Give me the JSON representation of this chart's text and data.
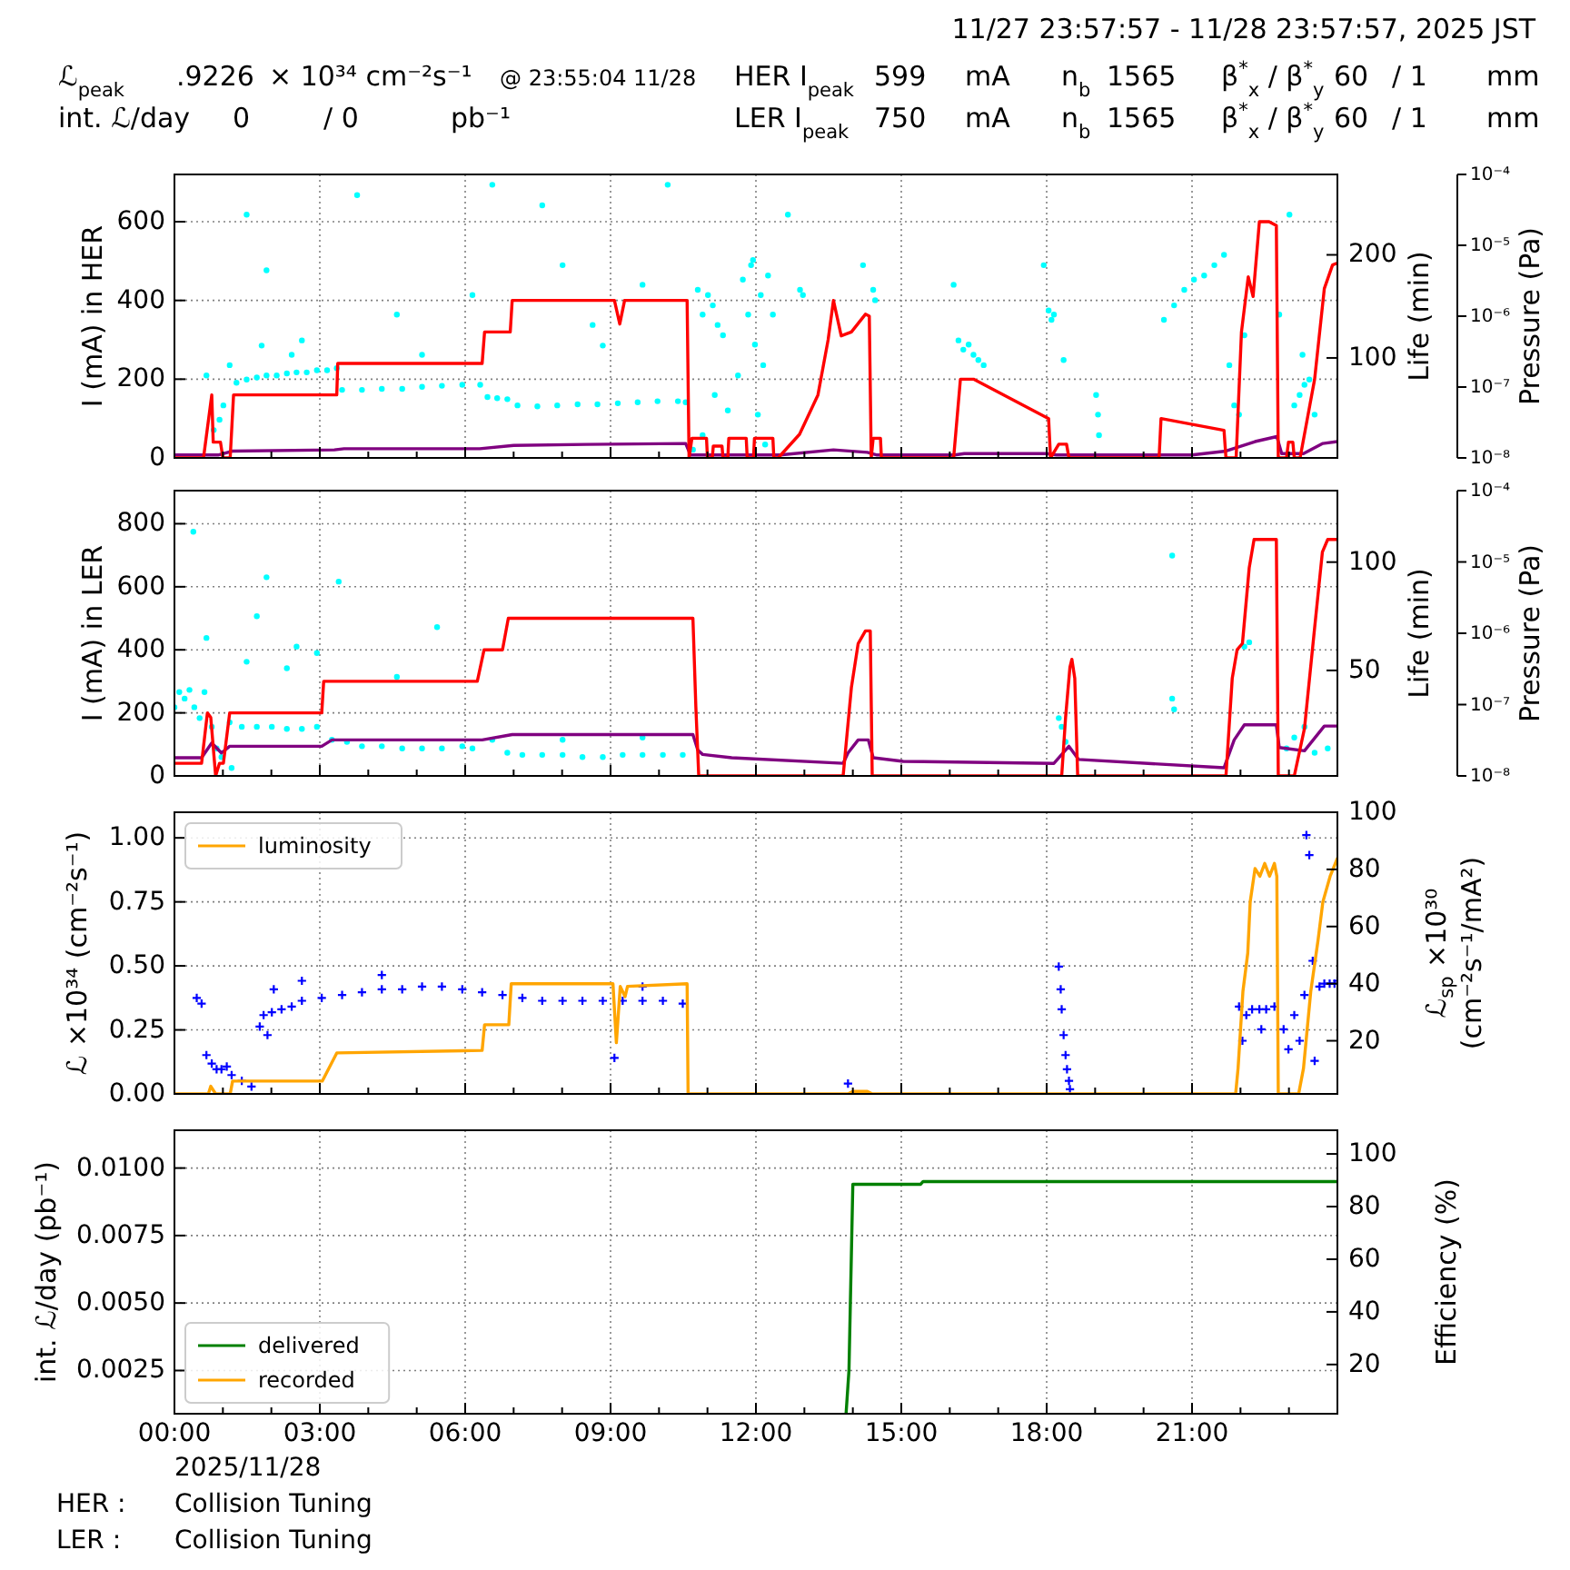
{
  "chart_data": [
    {
      "type": "other",
      "title": "11/27 23:57:57 - 11/28 23:57:57, 2025 JST",
      "annotations": [
        "ℒ$_{peak}$",
        ".9226",
        "× 10³⁴ cm⁻²s⁻¹",
        "@ 23:55:04 11/28",
        "HER I$_{peak}$",
        "599",
        "mA",
        "n$_{b}$",
        "1565",
        "β$^{*}$$_{x}$ / β$^{*}$$_{y}$",
        "60",
        "/ 1",
        "mm",
        "int. ℒ/day",
        "0",
        "/ 0",
        "pb⁻¹",
        "LER I$_{peak}$",
        "750",
        "mA",
        "n$_{b}$",
        "1565",
        "β$^{*}$$_{x}$ / β$^{*}$$_{y}$",
        "60",
        "/ 1",
        "mm"
      ]
    },
    {
      "type": "line",
      "ylabel": "I (mA) in HER",
      "y2label": "Life (min)",
      "y3label": "Pressure (Pa)",
      "xlim": [
        0,
        24
      ],
      "xticks": [
        0,
        {
          "value": 1,
          "label": null
        },
        {
          "value": 2,
          "label": null
        },
        3,
        {
          "value": 4,
          "label": null
        },
        {
          "value": 5,
          "label": null
        },
        6,
        {
          "value": 7,
          "label": null
        },
        {
          "value": 8,
          "label": null
        },
        9,
        {
          "value": 10,
          "label": null
        },
        {
          "value": 11,
          "label": null
        },
        12,
        {
          "value": 13,
          "label": null
        },
        {
          "value": 14,
          "label": null
        },
        15,
        {
          "value": 16,
          "label": null
        },
        {
          "value": 17,
          "label": null
        },
        18,
        {
          "value": 19,
          "label": null
        },
        {
          "value": 20,
          "label": null
        },
        21,
        {
          "value": 22,
          "label": null
        },
        {
          "value": 23,
          "label": null
        }
      ],
      "ylim": [
        0,
        720
      ],
      "yticks": [
        0,
        200,
        400,
        600
      ],
      "y2lim": [
        3,
        278
      ],
      "y2ticks": [
        100,
        200
      ],
      "y3lim": [
        1e-08,
        0.0001
      ],
      "y3ticks": [
        {
          "value": 1e-08,
          "label": "10⁻⁸"
        },
        {
          "value": 1e-07,
          "label": "10⁻⁷"
        },
        {
          "value": 1e-06,
          "label": "10⁻⁶"
        },
        {
          "value": 1e-05,
          "label": "10⁻⁵"
        },
        {
          "value": 0.0001,
          "label": "10⁻⁴"
        }
      ],
      "log": "y3",
      "grid": true,
      "tick_labels": "y",
      "series": [
        {
          "type": "scatter",
          "marker": "circle",
          "color": "#00ffff",
          "axis": "y2",
          "x": [
            0.66,
            0.81,
            0.93,
            1.01,
            1.14,
            1.28,
            1.49,
            1.7,
            1.9,
            2.11,
            2.32,
            2.52,
            2.73,
            2.94,
            3.15,
            3.35,
            1.49,
            1.9,
            1.8,
            2.42,
            2.63,
            3.46,
            3.87,
            4.28,
            4.7,
            5.11,
            5.52,
            5.94,
            6.31,
            3.77,
            4.59,
            6.15,
            5.11,
            6.46,
            6.66,
            6.87,
            7.08,
            7.49,
            7.9,
            8.32,
            8.73,
            9.15,
            9.56,
            9.97,
            10.39,
            10.55,
            6.56,
            7.59,
            8.01,
            8.84,
            9.66,
            10.18,
            8.63,
            10.8,
            10.9,
            11.01,
            11.11,
            11.21,
            11.32,
            10.9,
            11.15,
            10.7,
            11.42,
            11.63,
            11.73,
            11.84,
            11.9,
            11.94,
            11.98,
            12.04,
            12.1,
            12.15,
            12.19,
            12.25,
            12.35,
            12.66,
            12.91,
            12.97,
            14.42,
            14.46,
            14.21,
            16.18,
            16.28,
            16.39,
            16.49,
            16.59,
            16.7,
            16.08,
            18.04,
            18.1,
            18.15,
            17.94,
            19.02,
            19.06,
            19.08,
            18.35,
            20.42,
            20.63,
            20.84,
            21.04,
            21.25,
            21.46,
            21.66,
            21.77,
            21.87,
            21.97,
            22.08,
            23.11,
            23.22,
            23.32,
            23.42,
            23.53,
            23.28,
            23.01,
            22.8
          ],
          "values": [
            83,
            30,
            40,
            54,
            93,
            76,
            79,
            81,
            83,
            83,
            85,
            86,
            86,
            88,
            88,
            90,
            239,
            185,
            112,
            103,
            117,
            69,
            69,
            70,
            70,
            72,
            73,
            74,
            74,
            258,
            142,
            161,
            103,
            62,
            61,
            60,
            54,
            53,
            54,
            55,
            55,
            56,
            57,
            58,
            58,
            57,
            268,
            248,
            190,
            112,
            171,
            268,
            132,
            166,
            142,
            161,
            151,
            132,
            122,
            25,
            64,
            11,
            49,
            83,
            176,
            142,
            190,
            195,
            113,
            45,
            161,
            93,
            16,
            180,
            142,
            239,
            166,
            161,
            166,
            156,
            190,
            117,
            108,
            113,
            103,
            98,
            93,
            171,
            146,
            137,
            142,
            190,
            64,
            45,
            25,
            98,
            137,
            151,
            166,
            176,
            180,
            190,
            200,
            93,
            54,
            45,
            122,
            54,
            64,
            74,
            79,
            45,
            103,
            239,
            142
          ]
        },
        {
          "type": "line",
          "color": "#800080",
          "axis": "y3",
          "x": [
            0,
            0.9,
            1.2,
            3.3,
            3.5,
            6.3,
            7.0,
            8.5,
            10.55,
            10.65,
            12.5,
            13.6,
            14.3,
            14.5,
            16.1,
            16.3,
            18.0,
            18.2,
            21.0,
            21.7,
            22.3,
            22.75,
            22.85,
            23.3,
            23.7,
            24
          ],
          "values": [
            1.1e-08,
            1.1e-08,
            1.25e-08,
            1.3e-08,
            1.35e-08,
            1.35e-08,
            1.5e-08,
            1.55e-08,
            1.6e-08,
            1.1e-08,
            1.1e-08,
            1.3e-08,
            1.2e-08,
            1.1e-08,
            1.1e-08,
            1.15e-08,
            1.15e-08,
            1.1e-08,
            1.1e-08,
            1.25e-08,
            1.7e-08,
            2e-08,
            1.15e-08,
            1.15e-08,
            1.6e-08,
            1.7e-08
          ]
        },
        {
          "type": "line",
          "color": "#ff0000",
          "axis": "y",
          "x": [
            0,
            0.6,
            0.77,
            0.8,
            0.95,
            1.0,
            1.15,
            1.22,
            3.35,
            3.37,
            6.35,
            6.4,
            6.93,
            6.97,
            9.08,
            9.19,
            9.29,
            10.58,
            10.62,
            10.68,
            10.98,
            11.0,
            11.1,
            11.12,
            11.3,
            11.32,
            11.42,
            11.44,
            11.8,
            11.82,
            11.95,
            11.97,
            12.35,
            12.37,
            12.46,
            12.9,
            13.28,
            13.49,
            13.6,
            13.76,
            13.97,
            14.26,
            14.34,
            14.38,
            14.42,
            14.57,
            14.59,
            16.08,
            16.22,
            16.49,
            18.04,
            18.08,
            18.25,
            18.41,
            18.46,
            20.32,
            20.36,
            21.66,
            21.7,
            21.91,
            22.02,
            22.16,
            22.26,
            22.39,
            22.59,
            22.74,
            22.78,
            22.95,
            22.99,
            23.08,
            23.11,
            23.23,
            23.32,
            23.53,
            23.73,
            23.9,
            24
          ],
          "values": [
            0,
            0,
            160,
            40,
            40,
            0,
            0,
            160,
            160,
            240,
            240,
            320,
            320,
            400,
            400,
            340,
            400,
            400,
            0,
            50,
            50,
            0,
            0,
            30,
            30,
            0,
            0,
            50,
            50,
            0,
            0,
            50,
            50,
            0,
            0,
            60,
            160,
            300,
            400,
            310,
            320,
            365,
            360,
            0,
            50,
            50,
            0,
            0,
            200,
            200,
            100,
            0,
            35,
            35,
            0,
            0,
            100,
            70,
            0,
            0,
            320,
            460,
            410,
            600,
            600,
            590,
            0,
            0,
            40,
            40,
            0,
            0,
            60,
            200,
            430,
            490,
            495
          ]
        }
      ]
    },
    {
      "type": "line",
      "ylabel": "I (mA) in LER",
      "y2label": "Life (min)",
      "y3label": "Pressure (Pa)",
      "xlim": [
        0,
        24
      ],
      "xticks": [
        0,
        {
          "value": 1,
          "label": null
        },
        {
          "value": 2,
          "label": null
        },
        3,
        {
          "value": 4,
          "label": null
        },
        {
          "value": 5,
          "label": null
        },
        6,
        {
          "value": 7,
          "label": null
        },
        {
          "value": 8,
          "label": null
        },
        9,
        {
          "value": 10,
          "label": null
        },
        {
          "value": 11,
          "label": null
        },
        12,
        {
          "value": 13,
          "label": null
        },
        {
          "value": 14,
          "label": null
        },
        15,
        {
          "value": 16,
          "label": null
        },
        {
          "value": 17,
          "label": null
        },
        18,
        {
          "value": 19,
          "label": null
        },
        {
          "value": 20,
          "label": null
        },
        21,
        {
          "value": 22,
          "label": null
        },
        {
          "value": 23,
          "label": null
        }
      ],
      "ylim": [
        0,
        905
      ],
      "yticks": [
        0,
        200,
        400,
        600,
        800
      ],
      "y2lim": [
        1.3,
        133
      ],
      "y2ticks": [
        50,
        100
      ],
      "y3lim": [
        1e-08,
        0.0001
      ],
      "y3ticks": [
        {
          "value": 1e-08,
          "label": "10⁻⁸"
        },
        {
          "value": 1e-07,
          "label": "10⁻⁷"
        },
        {
          "value": 1e-06,
          "label": "10⁻⁶"
        },
        {
          "value": 1e-05,
          "label": "10⁻⁵"
        },
        {
          "value": 0.0001,
          "label": "10⁻⁴"
        }
      ],
      "log": "y3",
      "grid": true,
      "tick_labels": "y",
      "series": [
        {
          "type": "scatter",
          "marker": "circle",
          "color": "#00ffff",
          "axis": "y2",
          "x": [
            0.0,
            0.1,
            0.21,
            0.31,
            0.41,
            0.52,
            0.62,
            0.77,
            0.87,
            0.97,
            1.14,
            1.39,
            1.7,
            2.01,
            2.32,
            2.63,
            2.94,
            0.39,
            0.66,
            1.7,
            1.9,
            2.32,
            2.52,
            2.94,
            3.39,
            1.49,
            1.18,
            3.25,
            3.56,
            3.87,
            4.28,
            4.7,
            5.11,
            5.52,
            5.94,
            6.15,
            5.42,
            4.59,
            6.56,
            6.87,
            7.18,
            7.59,
            8.01,
            8.42,
            8.84,
            9.25,
            9.66,
            10.08,
            10.49,
            9.66,
            8.01,
            18.25,
            18.31,
            18.39,
            20.59,
            20.63,
            20.59,
            22.95,
            23.11,
            23.32,
            23.53,
            22.08,
            22.18,
            23.8
          ],
          "values": [
            33,
            40,
            37,
            41,
            33,
            28,
            40,
            24,
            14,
            10,
            26,
            24,
            24,
            24,
            23,
            23,
            24,
            114,
            65,
            75,
            93,
            51,
            61,
            58,
            91,
            54,
            5,
            18,
            17,
            15,
            15,
            14,
            14,
            14,
            15,
            14,
            70,
            47,
            18,
            12,
            11,
            11,
            11,
            10,
            10,
            11,
            11,
            11,
            11,
            19,
            18,
            28,
            24,
            17,
            37,
            32,
            103,
            14,
            19,
            24,
            12,
            61,
            63,
            14
          ]
        },
        {
          "type": "line",
          "color": "#800080",
          "axis": "y3",
          "x": [
            0,
            0.56,
            0.77,
            0.97,
            1.14,
            3.04,
            3.25,
            6.35,
            6.97,
            10.7,
            10.8,
            10.9,
            11.5,
            13.8,
            13.9,
            14.11,
            14.32,
            14.42,
            15.04,
            18.15,
            18.46,
            18.66,
            21.66,
            21.87,
            22.08,
            22.74,
            22.8,
            23.32,
            23.73,
            24
          ],
          "values": [
            1.8e-08,
            1.8e-08,
            2.9e-08,
            2.1e-08,
            2.6e-08,
            2.6e-08,
            3.2e-08,
            3.2e-08,
            3.8e-08,
            3.8e-08,
            2.3e-08,
            2e-08,
            1.8e-08,
            1.5e-08,
            2.1e-08,
            3.2e-08,
            3.2e-08,
            1.8e-08,
            1.6e-08,
            1.5e-08,
            2.6e-08,
            1.7e-08,
            1.3e-08,
            3.2e-08,
            5.2e-08,
            5.2e-08,
            2.5e-08,
            2.25e-08,
            5e-08,
            5e-08
          ]
        },
        {
          "type": "line",
          "color": "#ff0000",
          "axis": "y",
          "x": [
            0,
            0.56,
            0.68,
            0.75,
            0.85,
            0.93,
            1.01,
            1.14,
            3.04,
            3.08,
            6.25,
            6.39,
            6.77,
            6.89,
            10.7,
            10.76,
            10.82,
            13.8,
            13.97,
            14.11,
            14.26,
            14.36,
            14.4,
            18.31,
            18.39,
            18.48,
            18.52,
            18.58,
            18.64,
            21.7,
            21.83,
            21.93,
            22.04,
            22.18,
            22.28,
            22.74,
            22.78,
            23.11,
            23.32,
            23.53,
            23.69,
            23.8,
            24
          ],
          "values": [
            40,
            40,
            200,
            185,
            0,
            40,
            40,
            200,
            200,
            300,
            300,
            400,
            400,
            500,
            500,
            220,
            0,
            0,
            280,
            420,
            460,
            460,
            0,
            0,
            185,
            345,
            370,
            310,
            0,
            0,
            310,
            400,
            420,
            660,
            750,
            750,
            0,
            0,
            150,
            470,
            710,
            750,
            750
          ]
        }
      ]
    },
    {
      "type": "line",
      "ylabel": "ℒ ×10³⁴ (cm⁻²s⁻¹)",
      "y2label": "ℒ$_{sp}$ ×10³⁰\n(cm⁻²s⁻¹/mA²)",
      "xlim": [
        0,
        24
      ],
      "xticks": [
        0,
        {
          "value": 1,
          "label": null
        },
        {
          "value": 2,
          "label": null
        },
        3,
        {
          "value": 4,
          "label": null
        },
        {
          "value": 5,
          "label": null
        },
        6,
        {
          "value": 7,
          "label": null
        },
        {
          "value": 8,
          "label": null
        },
        9,
        {
          "value": 10,
          "label": null
        },
        {
          "value": 11,
          "label": null
        },
        12,
        {
          "value": 13,
          "label": null
        },
        {
          "value": 14,
          "label": null
        },
        15,
        {
          "value": 16,
          "label": null
        },
        {
          "value": 17,
          "label": null
        },
        18,
        {
          "value": 19,
          "label": null
        },
        {
          "value": 20,
          "label": null
        },
        21,
        {
          "value": 22,
          "label": null
        },
        {
          "value": 23,
          "label": null
        }
      ],
      "ylim": [
        0,
        1.1
      ],
      "yticks": [
        {
          "value": 0,
          "label": "0.00"
        },
        {
          "value": 0.25,
          "label": "0.25"
        },
        {
          "value": 0.5,
          "label": "0.50"
        },
        {
          "value": 0.75,
          "label": "0.75"
        },
        {
          "value": 1,
          "label": "1.00"
        }
      ],
      "y2lim": [
        1.4,
        100
      ],
      "y2ticks": [
        20,
        40,
        60,
        80,
        100
      ],
      "grid": true,
      "tick_labels": "y",
      "legend": "top left",
      "series": [
        {
          "type": "scatter",
          "marker": "cross",
          "color": "#0000ff",
          "axis": "y2",
          "x": [
            0.46,
            0.56,
            0.66,
            0.77,
            0.87,
            0.97,
            1.08,
            1.18,
            1.39,
            1.59,
            1.76,
            1.84,
            1.92,
            2.01,
            2.21,
            2.42,
            2.63,
            3.04,
            3.46,
            3.87,
            4.28,
            4.7,
            5.11,
            5.52,
            5.94,
            6.35,
            6.77,
            7.18,
            7.59,
            8.01,
            8.42,
            8.84,
            9.25,
            9.66,
            10.08,
            10.49,
            9.08,
            9.66,
            2.63,
            4.28,
            2.05,
            13.9,
            18.25,
            18.29,
            18.31,
            18.35,
            18.39,
            18.42,
            18.46,
            18.48,
            21.97,
            22.12,
            22.24,
            22.39,
            22.53,
            22.7,
            22.04,
            22.43,
            22.89,
            22.99,
            23.11,
            23.22,
            23.32,
            23.36,
            23.42,
            23.49,
            23.53,
            23.63,
            23.73,
            23.84,
            23.94,
            24.0
          ],
          "values": [
            35,
            33,
            15,
            12,
            10,
            10,
            11,
            8,
            6,
            4,
            25,
            29,
            22,
            30,
            31,
            32,
            34,
            35,
            36,
            37,
            38,
            38,
            39,
            39,
            38,
            37,
            36,
            35,
            34,
            34,
            34,
            34,
            34,
            34,
            34,
            33,
            14,
            39,
            41,
            43,
            38,
            5,
            46,
            38,
            31,
            22,
            15,
            10,
            6,
            3,
            32,
            29,
            31,
            31,
            31,
            32,
            20,
            24,
            24,
            17,
            29,
            20,
            36,
            92,
            85,
            48,
            13,
            39,
            40,
            40,
            40,
            41
          ]
        },
        {
          "type": "line",
          "name": "luminosity",
          "color": "#ffa500",
          "axis": "y",
          "x": [
            0,
            0.7,
            0.75,
            0.85,
            1.15,
            1.2,
            3.05,
            3.35,
            6.35,
            6.4,
            6.9,
            6.95,
            9.05,
            9.12,
            9.2,
            9.3,
            9.35,
            10.58,
            10.6,
            13.9,
            14.0,
            14.3,
            14.4,
            21.9,
            21.95,
            22.05,
            22.15,
            22.2,
            22.3,
            22.4,
            22.5,
            22.6,
            22.7,
            22.75,
            22.78,
            23.2,
            23.3,
            23.45,
            23.6,
            23.7,
            23.85,
            24
          ],
          "values": [
            0,
            0,
            0.03,
            0,
            0,
            0.05,
            0.05,
            0.16,
            0.17,
            0.27,
            0.27,
            0.43,
            0.43,
            0.2,
            0.42,
            0.38,
            0.42,
            0.43,
            0,
            0,
            0.01,
            0.01,
            0,
            0,
            0.1,
            0.4,
            0.55,
            0.75,
            0.88,
            0.85,
            0.9,
            0.85,
            0.9,
            0.85,
            0,
            0,
            0.1,
            0.4,
            0.6,
            0.75,
            0.85,
            0.92
          ]
        }
      ]
    },
    {
      "type": "line",
      "ylabel": "int. ℒ/day (pb⁻¹)",
      "y2label": "Efficiency (%)",
      "xlim": [
        0,
        24
      ],
      "xticks": [
        {
          "value": 0,
          "label": "00:00"
        },
        {
          "value": 1,
          "label": null
        },
        {
          "value": 2,
          "label": null
        },
        {
          "value": 3,
          "label": "03:00"
        },
        {
          "value": 4,
          "label": null
        },
        {
          "value": 5,
          "label": null
        },
        {
          "value": 6,
          "label": "06:00"
        },
        {
          "value": 7,
          "label": null
        },
        {
          "value": 8,
          "label": null
        },
        {
          "value": 9,
          "label": "09:00"
        },
        {
          "value": 10,
          "label": null
        },
        {
          "value": 11,
          "label": null
        },
        {
          "value": 12,
          "label": "12:00"
        },
        {
          "value": 13,
          "label": null
        },
        {
          "value": 14,
          "label": null
        },
        {
          "value": 15,
          "label": "15:00"
        },
        {
          "value": 16,
          "label": null
        },
        {
          "value": 17,
          "label": null
        },
        {
          "value": 18,
          "label": "18:00"
        },
        {
          "value": 19,
          "label": null
        },
        {
          "value": 20,
          "label": null
        },
        {
          "value": 21,
          "label": "21:00"
        },
        {
          "value": 22,
          "label": null
        },
        {
          "value": 23,
          "label": null
        }
      ],
      "ylim": [
        0.0009,
        0.0114
      ],
      "yticks": [
        {
          "value": 0.0025,
          "label": "0.0025"
        },
        {
          "value": 0.005,
          "label": "0.0050"
        },
        {
          "value": 0.0075,
          "label": "0.0075"
        },
        {
          "value": 0.01,
          "label": "0.0100"
        }
      ],
      "y2lim": [
        1.3,
        109
      ],
      "y2ticks": [
        20,
        40,
        60,
        80,
        100
      ],
      "grid": true,
      "legend": "bottom left",
      "annotations": [
        "2025/11/28",
        "HER :",
        "Collision Tuning",
        "LER :",
        "Collision Tuning"
      ],
      "series": [
        {
          "type": "line",
          "name": "delivered",
          "color": "#008000",
          "axis": "y",
          "x": [
            13.86,
            13.92,
            14.0,
            15.4,
            15.45,
            24
          ],
          "values": [
            0.0009,
            0.0025,
            0.0094,
            0.0094,
            0.0095,
            0.0095
          ]
        },
        {
          "type": "line",
          "name": "recorded",
          "color": "#ffa500",
          "axis": "y"
        }
      ]
    }
  ]
}
